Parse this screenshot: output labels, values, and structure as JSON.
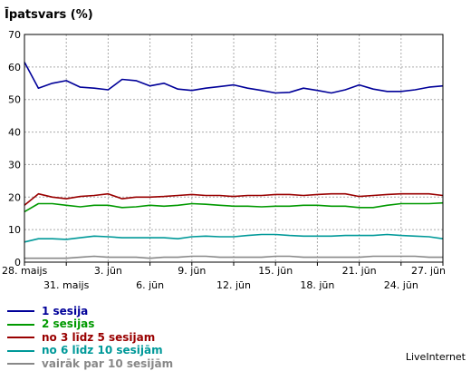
{
  "chart_data": {
    "type": "line",
    "title": "Īpatsvars (%)",
    "ylim": [
      0,
      70
    ],
    "yticks": [
      0,
      10,
      20,
      30,
      40,
      50,
      60,
      70
    ],
    "grid": true,
    "x_tick_labels_row1": [
      "28. maijs",
      "3. jūn",
      "9. jūn",
      "15. jūn",
      "21. jūn",
      "27. jūn"
    ],
    "x_tick_labels_row2": [
      "31. maijs",
      "6. jūn",
      "12. jūn",
      "18. jūn",
      "24. jūn"
    ],
    "series": [
      {
        "name": "1 sesija",
        "color": "#000099",
        "values": [
          61.5,
          53.5,
          55,
          55.8,
          53.8,
          53.5,
          53,
          56.2,
          55.8,
          54.2,
          55,
          53.2,
          52.8,
          53.5,
          54,
          54.5,
          53.5,
          52.8,
          52,
          52.2,
          53.5,
          52.8,
          52,
          53,
          54.5,
          53.2,
          52.5,
          52.5,
          53,
          53.8,
          54.2
        ]
      },
      {
        "name": "2 sesijas",
        "color": "#009900",
        "values": [
          15.5,
          18,
          18,
          17.5,
          17,
          17.5,
          17.5,
          16.8,
          17,
          17.5,
          17.2,
          17.5,
          18,
          17.8,
          17.5,
          17.2,
          17.2,
          17,
          17.2,
          17.2,
          17.5,
          17.5,
          17.2,
          17.2,
          16.8,
          16.8,
          17.5,
          18,
          18,
          18,
          18.2
        ]
      },
      {
        "name": "no 3 līdz 5 sesijam",
        "color": "#990000",
        "values": [
          17.5,
          21,
          20,
          19.5,
          20.2,
          20.5,
          21,
          19.5,
          20,
          20,
          20.2,
          20.5,
          20.8,
          20.5,
          20.5,
          20.2,
          20.5,
          20.5,
          20.8,
          20.8,
          20.5,
          20.8,
          21,
          21,
          20.2,
          20.5,
          20.8,
          21,
          21,
          21,
          20.5
        ]
      },
      {
        "name": "no 6 līdz 10 sesijām",
        "color": "#009999",
        "values": [
          6.2,
          7.2,
          7.2,
          7,
          7.5,
          8,
          7.8,
          7.5,
          7.5,
          7.5,
          7.5,
          7.2,
          7.8,
          8,
          7.8,
          7.8,
          8.2,
          8.5,
          8.5,
          8.2,
          8,
          8,
          8,
          8.2,
          8.2,
          8.2,
          8.5,
          8.2,
          8,
          7.8,
          7.2
        ]
      },
      {
        "name": "vairāk par 10 sesijām",
        "color": "#888888",
        "values": [
          1.2,
          1.2,
          1.2,
          1.2,
          1.5,
          1.8,
          1.5,
          1.5,
          1.5,
          1.2,
          1.5,
          1.5,
          1.8,
          1.8,
          1.5,
          1.5,
          1.5,
          1.5,
          1.8,
          1.8,
          1.5,
          1.5,
          1.5,
          1.5,
          1.5,
          1.8,
          1.8,
          1.8,
          1.8,
          1.5,
          1.5
        ]
      }
    ]
  },
  "brand": "LiveInternet"
}
